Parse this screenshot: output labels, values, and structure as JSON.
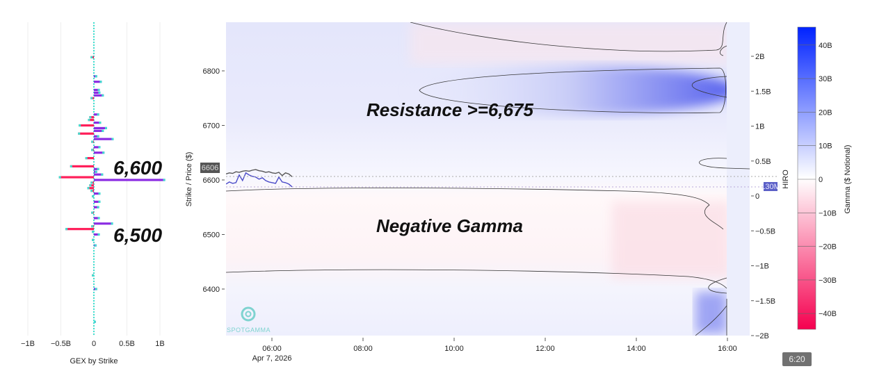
{
  "chart_data": [
    {
      "type": "bar",
      "orientation": "horizontal",
      "title": "GEX by Strike",
      "xlabel": "GEX by Strike",
      "xlim": [
        -1.1,
        1.1
      ],
      "x_ticks": [
        "−1B",
        "−0.5B",
        "0",
        "0.5B",
        "1B"
      ],
      "x_tick_values": [
        -1,
        -0.5,
        0,
        0.5,
        1
      ],
      "units": "B",
      "bars": [
        {
          "strike": 6825,
          "value": -0.05
        },
        {
          "strike": 6790,
          "value": 0.05
        },
        {
          "strike": 6780,
          "value": 0.12
        },
        {
          "strike": 6765,
          "value": 0.09
        },
        {
          "strike": 6760,
          "value": 0.1
        },
        {
          "strike": 6755,
          "value": 0.15
        },
        {
          "strike": 6750,
          "value": -0.05
        },
        {
          "strike": 6720,
          "value": 0.08
        },
        {
          "strike": 6715,
          "value": -0.07
        },
        {
          "strike": 6710,
          "value": -0.09
        },
        {
          "strike": 6705,
          "value": 0.11
        },
        {
          "strike": 6700,
          "value": -0.23
        },
        {
          "strike": 6695,
          "value": 0.2
        },
        {
          "strike": 6690,
          "value": 0.15
        },
        {
          "strike": 6685,
          "value": -0.24
        },
        {
          "strike": 6680,
          "value": 0.08
        },
        {
          "strike": 6675,
          "value": 0.3
        },
        {
          "strike": 6670,
          "value": -0.04
        },
        {
          "strike": 6660,
          "value": 0.1
        },
        {
          "strike": 6655,
          "value": -0.04
        },
        {
          "strike": 6650,
          "value": 0.16
        },
        {
          "strike": 6640,
          "value": -0.13
        },
        {
          "strike": 6625,
          "value": -0.36
        },
        {
          "strike": 6620,
          "value": 0.08
        },
        {
          "strike": 6615,
          "value": 0.05
        },
        {
          "strike": 6610,
          "value": 0.14
        },
        {
          "strike": 6605,
          "value": -0.53
        },
        {
          "strike": 6600,
          "value": 1.08
        },
        {
          "strike": 6595,
          "value": -0.05
        },
        {
          "strike": 6590,
          "value": -0.07
        },
        {
          "strike": 6585,
          "value": -0.1
        },
        {
          "strike": 6580,
          "value": -0.05
        },
        {
          "strike": 6575,
          "value": 0.1
        },
        {
          "strike": 6570,
          "value": -0.03
        },
        {
          "strike": 6560,
          "value": 0.1
        },
        {
          "strike": 6550,
          "value": 0.08
        },
        {
          "strike": 6540,
          "value": -0.04
        },
        {
          "strike": 6530,
          "value": 0.09
        },
        {
          "strike": 6520,
          "value": 0.29
        },
        {
          "strike": 6515,
          "value": -0.04
        },
        {
          "strike": 6510,
          "value": -0.43
        },
        {
          "strike": 6505,
          "value": -0.03
        },
        {
          "strike": 6500,
          "value": 0.09
        },
        {
          "strike": 6490,
          "value": -0.03
        },
        {
          "strike": 6480,
          "value": 0.04
        },
        {
          "strike": 6425,
          "value": -0.03
        },
        {
          "strike": 6400,
          "value": 0.05
        },
        {
          "strike": 6340,
          "value": 0.03
        }
      ],
      "annotations": [
        "6,600",
        "6,500"
      ],
      "colors": {
        "positive": "#8a2be2",
        "negative": "#ff1f5a",
        "axis": "#40e0d0"
      }
    },
    {
      "type": "heatmap",
      "ylabel": "Strike / Price ($)",
      "ylim": [
        6315,
        6890
      ],
      "y_ticks": [
        "6400",
        "6500",
        "6600",
        "6700",
        "6800"
      ],
      "y_tick_values": [
        6400,
        6500,
        6600,
        6700,
        6800
      ],
      "x_ticks": [
        "06:00",
        "08:00",
        "10:00",
        "12:00",
        "14:00",
        "16:00"
      ],
      "x_tick_hours": [
        6,
        8,
        10,
        12,
        14,
        16
      ],
      "xlim_hours": [
        5,
        16.5
      ],
      "date_label": "Apr 7, 2026",
      "price_label": "6606",
      "current_price": 6606,
      "y2label": "HIRO",
      "y2lim": [
        -2,
        2.4
      ],
      "y2_ticks": [
        "−2B",
        "−1.5B",
        "−1B",
        "−0.5B",
        "0",
        "0.5B",
        "1B",
        "1.5B",
        "2B"
      ],
      "y2_tick_values": [
        -2,
        -1.5,
        -1,
        -0.5,
        0,
        0.5,
        1,
        1.5,
        2
      ],
      "hiro_label": "130M",
      "hiro_value": 0.13,
      "annotations": [
        "Resistance >=6,675",
        "Negative Gamma"
      ],
      "watermark": "SPOTGAMMA",
      "colorbar": {
        "label": "Gamma ($ Notional)",
        "range": [
          -45,
          45
        ],
        "ticks": [
          "−40B",
          "−30B",
          "−20B",
          "−10B",
          "0",
          "10B",
          "20B",
          "30B",
          "40B"
        ],
        "tick_values": [
          -40,
          -30,
          -20,
          -10,
          0,
          10,
          20,
          30,
          40
        ],
        "colors": {
          "high": "#0022ff",
          "mid": "#ffffff",
          "low": "#f5004f"
        }
      },
      "price_series": [
        6611,
        6613,
        6612,
        6615,
        6614,
        6616,
        6617,
        6616,
        6618,
        6619,
        6617,
        6616,
        6614,
        6615,
        6613,
        6612,
        6614,
        6608,
        6613,
        6611,
        6606
      ],
      "hiro_series": [
        0.17,
        0.2,
        0.18,
        0.19,
        0.3,
        0.22,
        0.33,
        0.3,
        0.28,
        0.27,
        0.24,
        0.26,
        0.22,
        0.2,
        0.19,
        0.18,
        0.27,
        0.2,
        0.19,
        0.17,
        0.13
      ]
    }
  ],
  "controls": {
    "time_button": "6:20"
  }
}
